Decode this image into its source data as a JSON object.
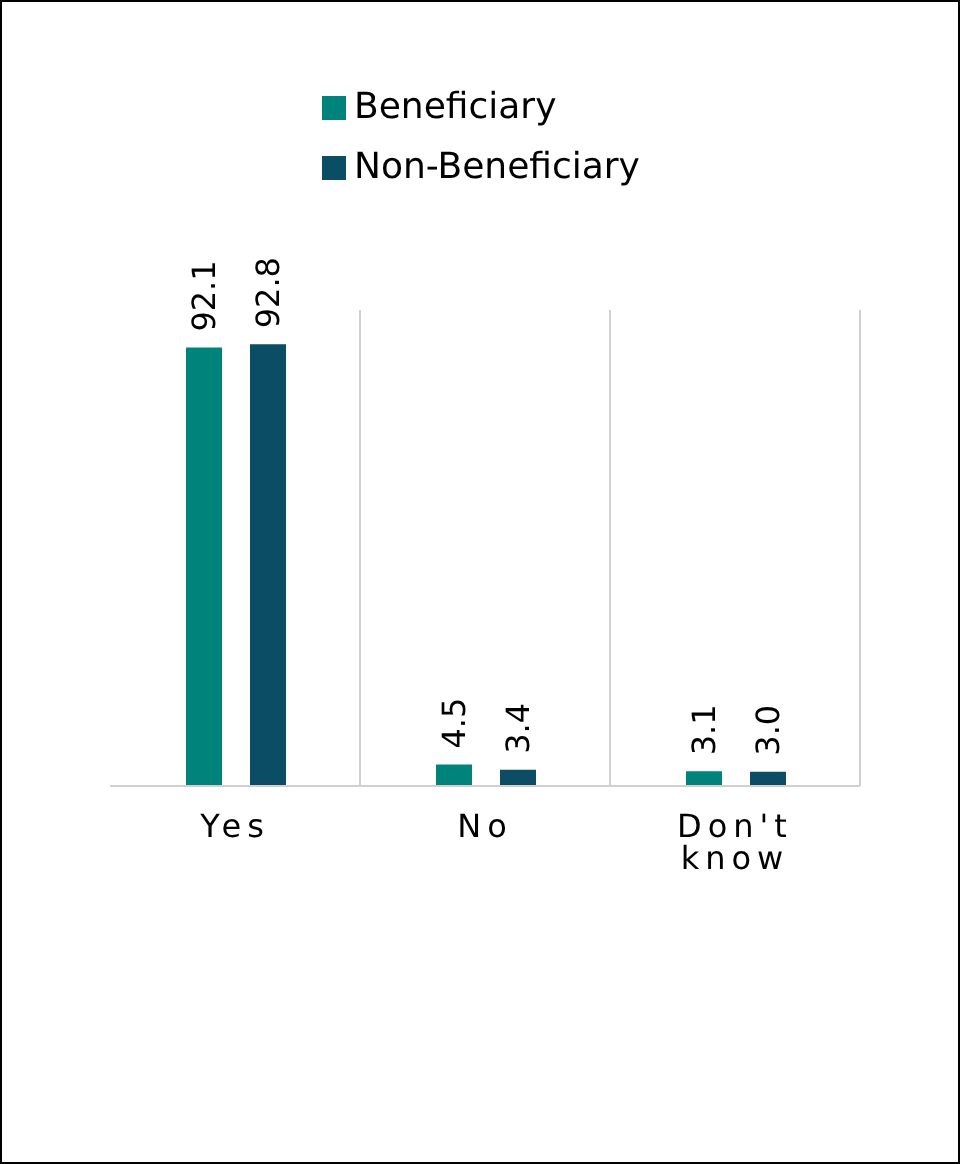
{
  "chart_data": {
    "type": "bar",
    "categories": [
      "Yes",
      "No",
      "Don't know"
    ],
    "series": [
      {
        "name": "Beneficiary",
        "color": "#00837b",
        "values": [
          92.1,
          4.5,
          3.1
        ],
        "value_labels": [
          "92.1",
          "4.5",
          "3.1"
        ]
      },
      {
        "name": "Non-Beneficiary",
        "color": "#0a4d64",
        "values": [
          92.8,
          3.4,
          3.0
        ],
        "value_labels": [
          "92.8",
          "3.4",
          "3.0"
        ]
      }
    ],
    "ylim": [
      0,
      100
    ],
    "grid": "x",
    "legend": "top"
  }
}
